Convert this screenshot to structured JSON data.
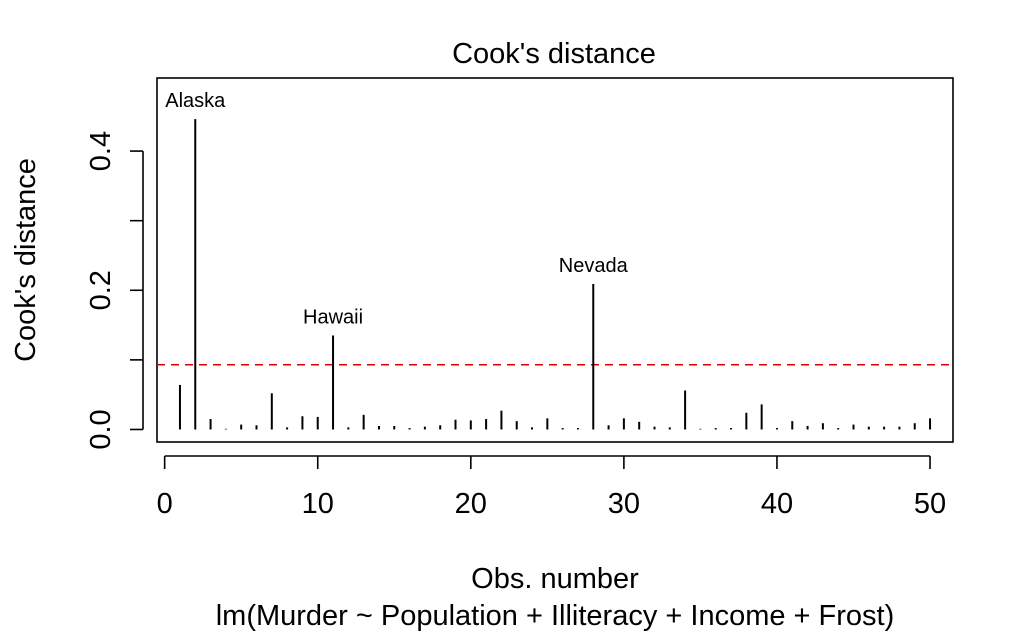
{
  "chart_data": {
    "type": "bar",
    "title": "Cook's distance",
    "xlabel": "Obs. number",
    "subtitle": "lm(Murder ~ Population + Illiteracy + Income + Frost)",
    "ylabel": "Cook's distance",
    "xlim": [
      -0.5,
      51.5
    ],
    "ylim": [
      -0.018,
      0.505
    ],
    "xticks": [
      0,
      10,
      20,
      30,
      40,
      50
    ],
    "yticks": [
      0.0,
      0.1,
      0.2,
      0.3,
      0.4
    ],
    "ytick_labels": [
      "0.0",
      "",
      "0.2",
      "",
      "0.4"
    ],
    "x": [
      1,
      2,
      3,
      4,
      5,
      6,
      7,
      8,
      9,
      10,
      11,
      12,
      13,
      14,
      15,
      16,
      17,
      18,
      19,
      20,
      21,
      22,
      23,
      24,
      25,
      26,
      27,
      28,
      29,
      30,
      31,
      32,
      33,
      34,
      35,
      36,
      37,
      38,
      39,
      40,
      41,
      42,
      43,
      44,
      45,
      46,
      47,
      48,
      49,
      50
    ],
    "values": [
      0.064,
      0.446,
      0.015,
      0.001,
      0.007,
      0.006,
      0.052,
      0.003,
      0.019,
      0.018,
      0.135,
      0.003,
      0.021,
      0.005,
      0.005,
      0.002,
      0.004,
      0.006,
      0.014,
      0.013,
      0.015,
      0.027,
      0.012,
      0.003,
      0.016,
      0.002,
      0.002,
      0.209,
      0.006,
      0.016,
      0.011,
      0.004,
      0.003,
      0.056,
      0.001,
      0.002,
      0.002,
      0.024,
      0.036,
      0.002,
      0.012,
      0.005,
      0.009,
      0.002,
      0.007,
      0.004,
      0.004,
      0.004,
      0.009,
      0.016
    ],
    "labeled_points": [
      {
        "x": 2,
        "label": "Alaska"
      },
      {
        "x": 11,
        "label": "Hawaii"
      },
      {
        "x": 28,
        "label": "Nevada"
      }
    ],
    "reference_line": {
      "y": 0.093,
      "color": "#dd0000",
      "style": "dashed"
    },
    "grid": false,
    "legend": "none",
    "bar_color": "#000000"
  }
}
